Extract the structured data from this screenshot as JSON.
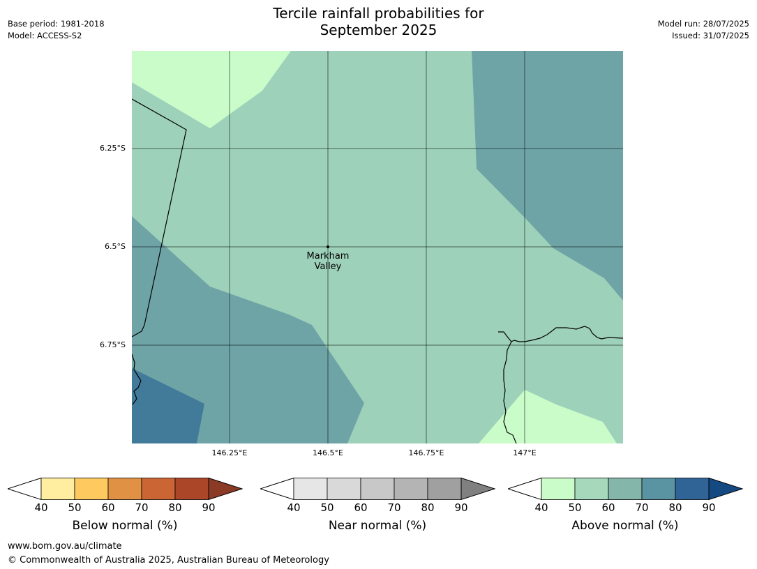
{
  "header": {
    "title_line1": "Tercile rainfall probabilities for",
    "title_line2": "September 2025",
    "base_period": "Base period: 1981-2018",
    "model": "Model: ACCESS-S2",
    "model_run": "Model run: 28/07/2025",
    "issued": "Issued: 31/07/2025"
  },
  "map": {
    "lat_labels": [
      "6.25°S",
      "6.5°S",
      "6.75°S"
    ],
    "lon_labels": [
      "146.25°E",
      "146.5°E",
      "146.75°E",
      "147°E"
    ],
    "place": {
      "name_line1": "Markham",
      "name_line2": "Valley"
    },
    "colors": {
      "above_40_50": "#c9fcc9",
      "above_50_60": "#9ed1ba",
      "above_60_70": "#6fa4a7",
      "above_70_80": "#417b99"
    }
  },
  "colorbars": [
    {
      "label": "Below normal (%)",
      "ticks": [
        "40",
        "50",
        "60",
        "70",
        "80",
        "90"
      ],
      "colors": [
        "#ffeda0",
        "#fec95f",
        "#e19143",
        "#cb6534",
        "#ac4629"
      ],
      "extend_color": "#8b3a26"
    },
    {
      "label": "Near normal (%)",
      "ticks": [
        "40",
        "50",
        "60",
        "70",
        "80",
        "90"
      ],
      "colors": [
        "#e6e6e6",
        "#d9d9d9",
        "#c8c8c8",
        "#b4b4b4",
        "#a0a0a0"
      ],
      "extend_color": "#808080"
    },
    {
      "label": "Above normal (%)",
      "ticks": [
        "40",
        "50",
        "60",
        "70",
        "80",
        "90"
      ],
      "colors": [
        "#c9fcc9",
        "#a6d8bb",
        "#84b7a9",
        "#5a93a2",
        "#316496"
      ],
      "extend_color": "#144982"
    }
  ],
  "footer": {
    "url": "www.bom.gov.au/climate",
    "copyright": "© Commonwealth of Australia 2025, Australian Bureau of Meteorology"
  }
}
